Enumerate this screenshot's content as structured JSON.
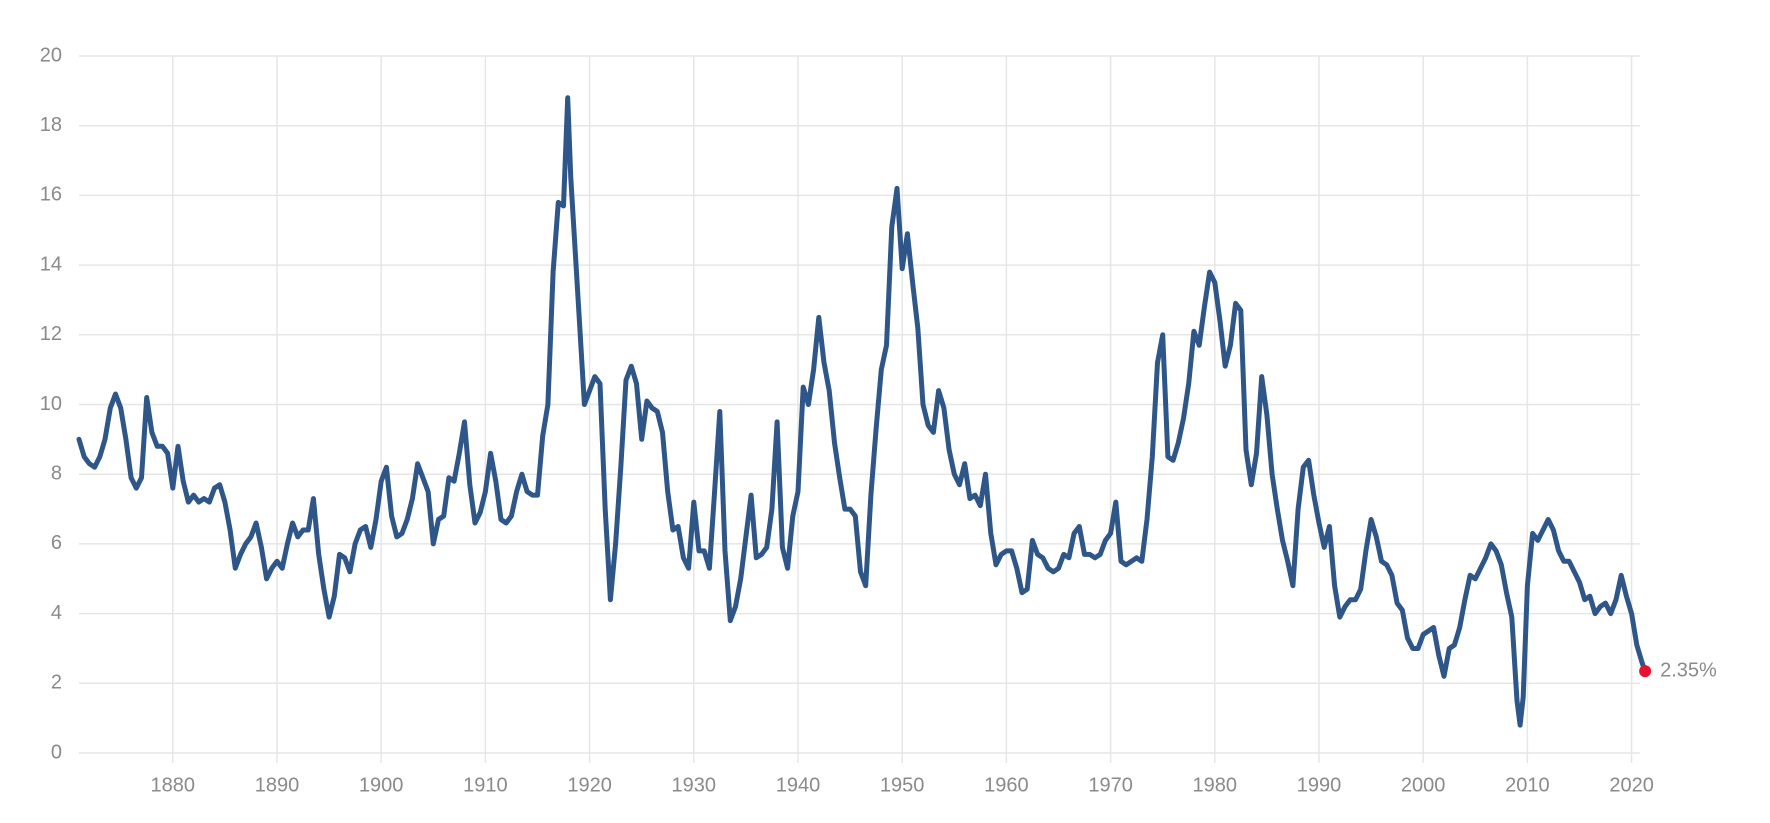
{
  "chart_data": {
    "type": "line",
    "title": "",
    "xlabel": "",
    "ylabel": "",
    "xlim": [
      1871,
      2021
    ],
    "ylim": [
      0,
      20
    ],
    "grid": true,
    "legend": "none",
    "x_ticks": [
      1880,
      1890,
      1900,
      1910,
      1920,
      1930,
      1940,
      1950,
      1960,
      1970,
      1980,
      1990,
      2000,
      2010,
      2020
    ],
    "y_ticks": [
      0,
      2,
      4,
      6,
      8,
      10,
      12,
      14,
      16,
      18,
      20
    ],
    "colors": {
      "line": "#2f5689",
      "end_marker": "#e8112d",
      "grid": "#e6e6e6",
      "text": "#8a8a8a"
    },
    "end_label": "2.35%",
    "series": [
      {
        "values": [
          [
            1871,
            9.0
          ],
          [
            1871.5,
            8.5
          ],
          [
            1872,
            8.3
          ],
          [
            1872.5,
            8.2
          ],
          [
            1873,
            8.5
          ],
          [
            1873.5,
            9.0
          ],
          [
            1874,
            9.9
          ],
          [
            1874.5,
            10.3
          ],
          [
            1875,
            9.9
          ],
          [
            1875.5,
            9.0
          ],
          [
            1876,
            7.9
          ],
          [
            1876.5,
            7.6
          ],
          [
            1877,
            7.9
          ],
          [
            1877.5,
            10.2
          ],
          [
            1878,
            9.2
          ],
          [
            1878.5,
            8.8
          ],
          [
            1879,
            8.8
          ],
          [
            1879.5,
            8.6
          ],
          [
            1880,
            7.6
          ],
          [
            1880.5,
            8.8
          ],
          [
            1881,
            7.8
          ],
          [
            1881.5,
            7.2
          ],
          [
            1882,
            7.4
          ],
          [
            1882.5,
            7.2
          ],
          [
            1883,
            7.3
          ],
          [
            1883.5,
            7.2
          ],
          [
            1884,
            7.6
          ],
          [
            1884.5,
            7.7
          ],
          [
            1885,
            7.2
          ],
          [
            1885.5,
            6.4
          ],
          [
            1886,
            5.3
          ],
          [
            1886.5,
            5.7
          ],
          [
            1887,
            6.0
          ],
          [
            1887.5,
            6.2
          ],
          [
            1888,
            6.6
          ],
          [
            1888.5,
            5.9
          ],
          [
            1889,
            5.0
          ],
          [
            1889.5,
            5.3
          ],
          [
            1890,
            5.5
          ],
          [
            1890.5,
            5.3
          ],
          [
            1891,
            6.0
          ],
          [
            1891.5,
            6.6
          ],
          [
            1892,
            6.2
          ],
          [
            1892.5,
            6.4
          ],
          [
            1893,
            6.4
          ],
          [
            1893.5,
            7.3
          ],
          [
            1894,
            5.7
          ],
          [
            1894.5,
            4.7
          ],
          [
            1895,
            3.9
          ],
          [
            1895.5,
            4.5
          ],
          [
            1896,
            5.7
          ],
          [
            1896.5,
            5.6
          ],
          [
            1897,
            5.2
          ],
          [
            1897.5,
            6.0
          ],
          [
            1898,
            6.4
          ],
          [
            1898.5,
            6.5
          ],
          [
            1899,
            5.9
          ],
          [
            1899.5,
            6.7
          ],
          [
            1900,
            7.8
          ],
          [
            1900.5,
            8.2
          ],
          [
            1901,
            6.8
          ],
          [
            1901.5,
            6.2
          ],
          [
            1902,
            6.3
          ],
          [
            1902.5,
            6.7
          ],
          [
            1903,
            7.3
          ],
          [
            1903.5,
            8.3
          ],
          [
            1904,
            7.9
          ],
          [
            1904.5,
            7.5
          ],
          [
            1905,
            6.0
          ],
          [
            1905.5,
            6.7
          ],
          [
            1906,
            6.8
          ],
          [
            1906.5,
            7.9
          ],
          [
            1907,
            7.8
          ],
          [
            1907.5,
            8.6
          ],
          [
            1908,
            9.5
          ],
          [
            1908.5,
            7.7
          ],
          [
            1909,
            6.6
          ],
          [
            1909.5,
            6.9
          ],
          [
            1910,
            7.5
          ],
          [
            1910.5,
            8.6
          ],
          [
            1911,
            7.8
          ],
          [
            1911.5,
            6.7
          ],
          [
            1912,
            6.6
          ],
          [
            1912.5,
            6.8
          ],
          [
            1913,
            7.5
          ],
          [
            1913.5,
            8.0
          ],
          [
            1914,
            7.5
          ],
          [
            1914.5,
            7.4
          ],
          [
            1915,
            7.4
          ],
          [
            1915.5,
            9.1
          ],
          [
            1916,
            10.0
          ],
          [
            1916.5,
            13.8
          ],
          [
            1917,
            15.8
          ],
          [
            1917.5,
            15.7
          ],
          [
            1917.9,
            18.8
          ],
          [
            1918.2,
            16.5
          ],
          [
            1918.6,
            14.5
          ],
          [
            1919,
            12.5
          ],
          [
            1919.5,
            10.0
          ],
          [
            1920,
            10.4
          ],
          [
            1920.5,
            10.8
          ],
          [
            1921,
            10.6
          ],
          [
            1921.5,
            7.0
          ],
          [
            1922,
            4.4
          ],
          [
            1922.5,
            6.0
          ],
          [
            1923,
            8.2
          ],
          [
            1923.5,
            10.7
          ],
          [
            1924,
            11.1
          ],
          [
            1924.5,
            10.6
          ],
          [
            1925,
            9.0
          ],
          [
            1925.5,
            10.1
          ],
          [
            1926,
            9.9
          ],
          [
            1926.5,
            9.8
          ],
          [
            1927,
            9.2
          ],
          [
            1927.5,
            7.5
          ],
          [
            1928,
            6.4
          ],
          [
            1928.5,
            6.5
          ],
          [
            1929,
            5.6
          ],
          [
            1929.5,
            5.3
          ],
          [
            1930,
            7.2
          ],
          [
            1930.5,
            5.8
          ],
          [
            1931,
            5.8
          ],
          [
            1931.5,
            5.3
          ],
          [
            1932,
            7.5
          ],
          [
            1932.5,
            9.8
          ],
          [
            1933,
            5.8
          ],
          [
            1933.5,
            3.8
          ],
          [
            1934,
            4.2
          ],
          [
            1934.5,
            5.0
          ],
          [
            1935,
            6.2
          ],
          [
            1935.5,
            7.4
          ],
          [
            1936,
            5.6
          ],
          [
            1936.5,
            5.7
          ],
          [
            1937,
            5.9
          ],
          [
            1937.5,
            7.0
          ],
          [
            1938,
            9.5
          ],
          [
            1938.5,
            5.9
          ],
          [
            1939,
            5.3
          ],
          [
            1939.5,
            6.8
          ],
          [
            1940,
            7.5
          ],
          [
            1940.5,
            10.5
          ],
          [
            1941,
            10.0
          ],
          [
            1941.5,
            11.0
          ],
          [
            1942,
            12.5
          ],
          [
            1942.5,
            11.2
          ],
          [
            1943,
            10.4
          ],
          [
            1943.5,
            8.9
          ],
          [
            1944,
            7.9
          ],
          [
            1944.5,
            7.0
          ],
          [
            1945,
            7.0
          ],
          [
            1945.5,
            6.8
          ],
          [
            1946,
            5.2
          ],
          [
            1946.5,
            4.8
          ],
          [
            1947,
            7.4
          ],
          [
            1947.5,
            9.3
          ],
          [
            1948,
            11.0
          ],
          [
            1948.5,
            11.7
          ],
          [
            1949,
            15.1
          ],
          [
            1949.5,
            16.2
          ],
          [
            1950,
            13.9
          ],
          [
            1950.5,
            14.9
          ],
          [
            1951,
            13.5
          ],
          [
            1951.5,
            12.2
          ],
          [
            1952,
            10.0
          ],
          [
            1952.5,
            9.4
          ],
          [
            1953,
            9.2
          ],
          [
            1953.5,
            10.4
          ],
          [
            1954,
            9.9
          ],
          [
            1954.5,
            8.7
          ],
          [
            1955,
            8.0
          ],
          [
            1955.5,
            7.7
          ],
          [
            1956,
            8.3
          ],
          [
            1956.5,
            7.3
          ],
          [
            1957,
            7.4
          ],
          [
            1957.5,
            7.1
          ],
          [
            1958,
            8.0
          ],
          [
            1958.5,
            6.3
          ],
          [
            1959,
            5.4
          ],
          [
            1959.5,
            5.7
          ],
          [
            1960,
            5.8
          ],
          [
            1960.5,
            5.8
          ],
          [
            1961,
            5.3
          ],
          [
            1961.5,
            4.6
          ],
          [
            1962,
            4.7
          ],
          [
            1962.5,
            6.1
          ],
          [
            1963,
            5.7
          ],
          [
            1963.5,
            5.6
          ],
          [
            1964,
            5.3
          ],
          [
            1964.5,
            5.2
          ],
          [
            1965,
            5.3
          ],
          [
            1965.5,
            5.7
          ],
          [
            1966,
            5.6
          ],
          [
            1966.5,
            6.3
          ],
          [
            1967,
            6.5
          ],
          [
            1967.5,
            5.7
          ],
          [
            1968,
            5.7
          ],
          [
            1968.5,
            5.6
          ],
          [
            1969,
            5.7
          ],
          [
            1969.5,
            6.1
          ],
          [
            1970,
            6.3
          ],
          [
            1970.5,
            7.2
          ],
          [
            1971,
            5.5
          ],
          [
            1971.5,
            5.4
          ],
          [
            1972,
            5.5
          ],
          [
            1972.5,
            5.6
          ],
          [
            1973,
            5.5
          ],
          [
            1973.5,
            6.7
          ],
          [
            1974,
            8.5
          ],
          [
            1974.5,
            11.2
          ],
          [
            1975,
            12.0
          ],
          [
            1975.5,
            8.5
          ],
          [
            1976,
            8.4
          ],
          [
            1976.5,
            8.9
          ],
          [
            1977,
            9.6
          ],
          [
            1977.5,
            10.6
          ],
          [
            1978,
            12.1
          ],
          [
            1978.5,
            11.7
          ],
          [
            1979,
            12.8
          ],
          [
            1979.5,
            13.8
          ],
          [
            1980,
            13.5
          ],
          [
            1980.5,
            12.4
          ],
          [
            1981,
            11.1
          ],
          [
            1981.5,
            11.7
          ],
          [
            1982,
            12.9
          ],
          [
            1982.5,
            12.7
          ],
          [
            1983,
            8.7
          ],
          [
            1983.5,
            7.7
          ],
          [
            1984,
            8.6
          ],
          [
            1984.5,
            10.8
          ],
          [
            1985,
            9.7
          ],
          [
            1985.5,
            8.0
          ],
          [
            1986,
            7.0
          ],
          [
            1986.5,
            6.1
          ],
          [
            1987,
            5.5
          ],
          [
            1987.5,
            4.8
          ],
          [
            1988,
            7.0
          ],
          [
            1988.5,
            8.2
          ],
          [
            1989,
            8.4
          ],
          [
            1989.5,
            7.4
          ],
          [
            1990,
            6.6
          ],
          [
            1990.5,
            5.9
          ],
          [
            1991,
            6.5
          ],
          [
            1991.5,
            4.8
          ],
          [
            1992,
            3.9
          ],
          [
            1992.5,
            4.2
          ],
          [
            1993,
            4.4
          ],
          [
            1993.5,
            4.4
          ],
          [
            1994,
            4.7
          ],
          [
            1994.5,
            5.8
          ],
          [
            1995,
            6.7
          ],
          [
            1995.5,
            6.2
          ],
          [
            1996,
            5.5
          ],
          [
            1996.5,
            5.4
          ],
          [
            1997,
            5.1
          ],
          [
            1997.5,
            4.3
          ],
          [
            1998,
            4.1
          ],
          [
            1998.5,
            3.3
          ],
          [
            1999,
            3.0
          ],
          [
            1999.5,
            3.0
          ],
          [
            2000,
            3.4
          ],
          [
            2000.5,
            3.5
          ],
          [
            2001,
            3.6
          ],
          [
            2001.5,
            2.8
          ],
          [
            2002,
            2.2
          ],
          [
            2002.5,
            3.0
          ],
          [
            2003,
            3.1
          ],
          [
            2003.5,
            3.6
          ],
          [
            2004,
            4.4
          ],
          [
            2004.5,
            5.1
          ],
          [
            2005,
            5.0
          ],
          [
            2005.5,
            5.3
          ],
          [
            2006,
            5.6
          ],
          [
            2006.5,
            6.0
          ],
          [
            2007,
            5.8
          ],
          [
            2007.5,
            5.4
          ],
          [
            2008,
            4.6
          ],
          [
            2008.5,
            3.9
          ],
          [
            2009,
            1.5
          ],
          [
            2009.3,
            0.8
          ],
          [
            2009.6,
            1.6
          ],
          [
            2010,
            4.8
          ],
          [
            2010.5,
            6.3
          ],
          [
            2011,
            6.1
          ],
          [
            2011.5,
            6.4
          ],
          [
            2012,
            6.7
          ],
          [
            2012.5,
            6.4
          ],
          [
            2013,
            5.8
          ],
          [
            2013.5,
            5.5
          ],
          [
            2014,
            5.5
          ],
          [
            2014.5,
            5.2
          ],
          [
            2015,
            4.9
          ],
          [
            2015.5,
            4.4
          ],
          [
            2016,
            4.5
          ],
          [
            2016.5,
            4.0
          ],
          [
            2017,
            4.2
          ],
          [
            2017.5,
            4.3
          ],
          [
            2018,
            4.0
          ],
          [
            2018.5,
            4.4
          ],
          [
            2019,
            5.1
          ],
          [
            2019.5,
            4.5
          ],
          [
            2020,
            4.0
          ],
          [
            2020.5,
            3.1
          ],
          [
            2021,
            2.6
          ],
          [
            2021.3,
            2.35
          ]
        ]
      }
    ]
  }
}
